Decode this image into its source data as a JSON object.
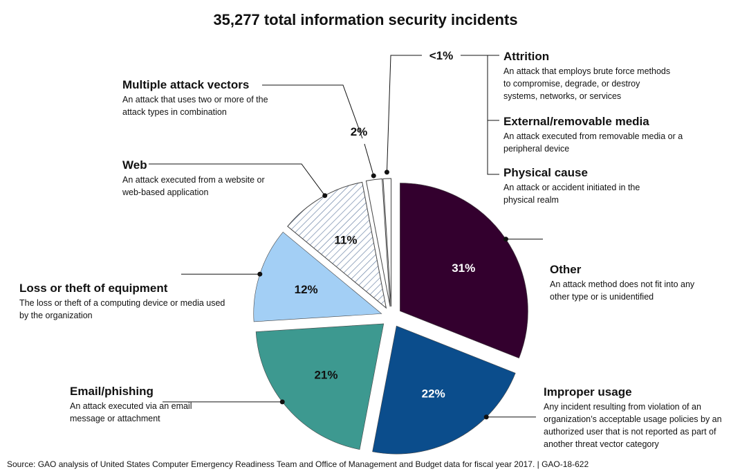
{
  "chart_data": {
    "type": "pie",
    "title": "35,277 total information security incidents",
    "slices": [
      {
        "name": "Other",
        "value": 31,
        "label": "31%",
        "color": "#33002e",
        "description": "An attack method does not fit into any other type or is unidentified"
      },
      {
        "name": "Improper usage",
        "value": 22,
        "label": "22%",
        "color": "#0b4d8c",
        "description": "Any incident resulting from violation of an organization’s acceptable usage policies by an authorized user that is not reported as part of another threat vector category"
      },
      {
        "name": "Email/phishing",
        "value": 21,
        "label": "21%",
        "color": "#3d9990",
        "description": "An attack executed via an email message or attachment"
      },
      {
        "name": "Loss or theft of equipment",
        "value": 12,
        "label": "12%",
        "color": "#a3cff5",
        "description": "The loss or theft of a computing device or media used by the organization"
      },
      {
        "name": "Web",
        "value": 11,
        "label": "11%",
        "color": "#ffffff",
        "pattern": "hatched",
        "description": "An attack executed from a website or web-based application"
      },
      {
        "name": "Multiple attack vectors",
        "value": 2,
        "label": "2%",
        "color": "#ffffff",
        "description": "An attack that uses two or more of the attack types in combination"
      },
      {
        "name": "Attrition / External/removable media / Physical cause",
        "value": 1,
        "label": "<1%",
        "color": "#ffffff",
        "description": ""
      }
    ],
    "small_group": [
      {
        "name": "Attrition",
        "description": "An attack that employs brute force methods to compromise, degrade, or destroy systems, networks, or services"
      },
      {
        "name": "External/removable media",
        "description": "An attack executed from removable media or a peripheral device"
      },
      {
        "name": "Physical cause",
        "description": "An attack or accident initiated in the physical realm"
      }
    ]
  },
  "source": "Source: GAO analysis of United States Computer Emergency Readiness Team and Office of Management and Budget data for fiscal year 2017.  |  GAO-18-622"
}
